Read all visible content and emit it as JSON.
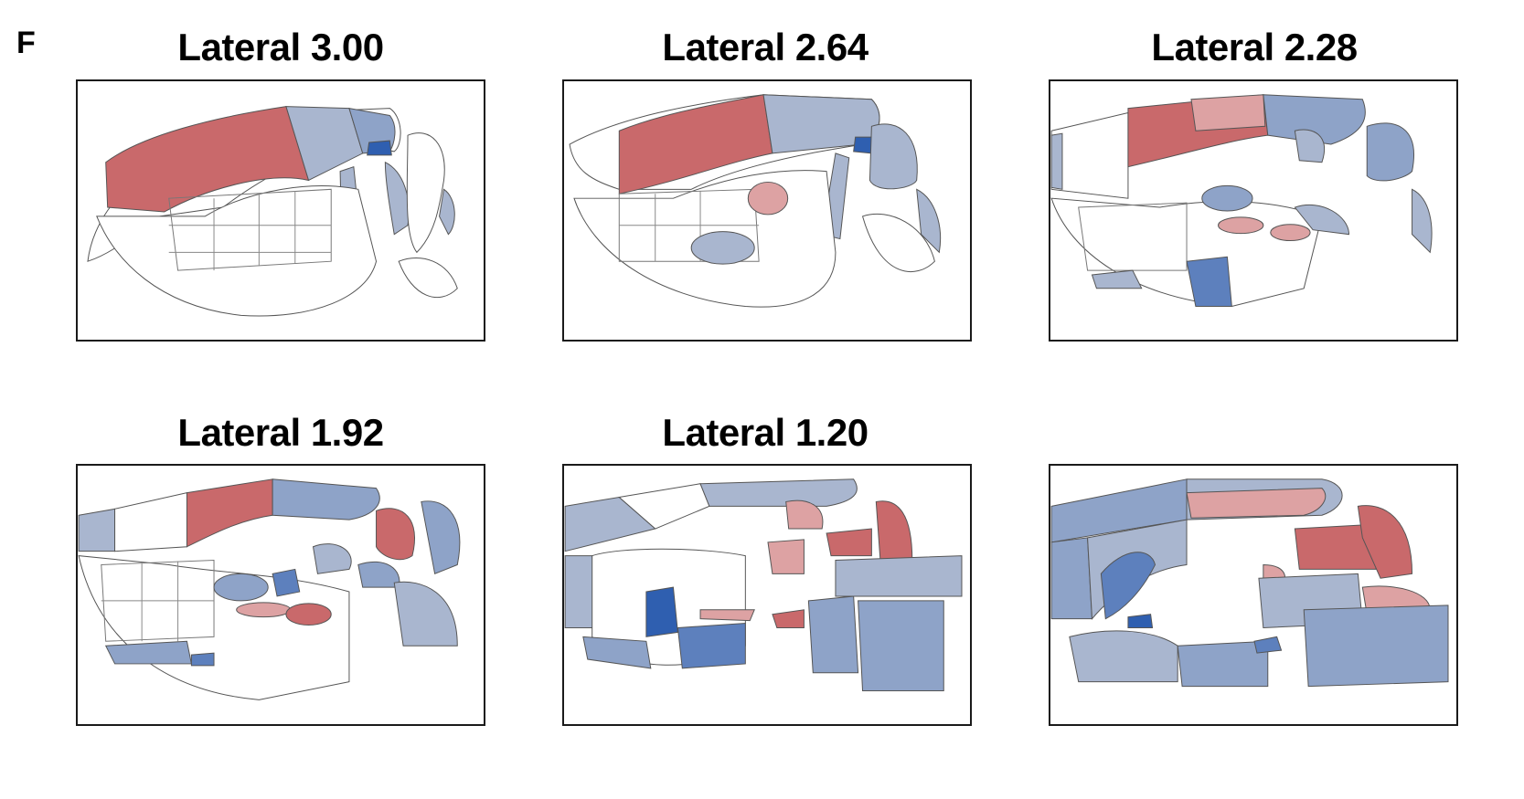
{
  "figure_label": "F",
  "panels": [
    {
      "title": "Lateral 3.00"
    },
    {
      "title": "Lateral 2.64"
    },
    {
      "title": "Lateral 2.28"
    },
    {
      "title": "Lateral 1.92"
    },
    {
      "title": "Lateral 1.20"
    },
    {
      "title": ""
    }
  ],
  "colors": {
    "red_strong": "#c9696b",
    "red_light": "#dda2a3",
    "blue_light": "#a9b6cf",
    "blue_mid": "#8ea3c8",
    "blue_strong": "#5d80bd",
    "blue_dark": "#2f5fb0",
    "outline": "#555555"
  }
}
